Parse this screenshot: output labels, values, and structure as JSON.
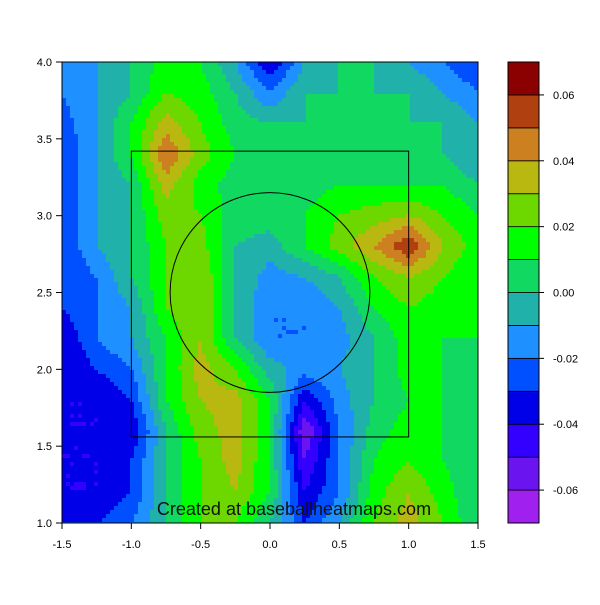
{
  "chart_data": {
    "type": "heatmap",
    "subtype": "filled-contour",
    "title": "",
    "xlabel": "",
    "ylabel": "",
    "xlim": [
      -1.5,
      1.5
    ],
    "ylim": [
      1.0,
      4.0
    ],
    "x_ticks": [
      -1.5,
      -1.0,
      -0.5,
      0.0,
      0.5,
      1.0,
      1.5
    ],
    "x_tick_labels": [
      "-1.5",
      "-1.0",
      "-0.5",
      "0.0",
      "0.5",
      "1.0",
      "1.5"
    ],
    "y_ticks": [
      1.0,
      1.5,
      2.0,
      2.5,
      3.0,
      3.5,
      4.0
    ],
    "y_tick_labels": [
      "1.0",
      "1.5",
      "2.0",
      "2.5",
      "3.0",
      "3.5",
      "4.0"
    ],
    "grid": false,
    "watermark": "Created at baseballheatmaps.com",
    "strike_zone": {
      "x": [
        -1.0,
        1.0
      ],
      "y": [
        1.56,
        3.42
      ]
    },
    "reference_circle": {
      "center": [
        0.0,
        2.5
      ],
      "radius_y": 0.65
    },
    "colorbar": {
      "levels": [
        -0.07,
        -0.06,
        -0.05,
        -0.04,
        -0.03,
        -0.02,
        -0.01,
        0.0,
        0.01,
        0.02,
        0.03,
        0.04,
        0.05,
        0.06,
        0.07
      ],
      "colors": [
        "#a020f0",
        "#6a14f0",
        "#3300ff",
        "#0000e8",
        "#0050ff",
        "#1e90ff",
        "#20b2aa",
        "#10d860",
        "#00ff00",
        "#6cd800",
        "#b8b810",
        "#cd8020",
        "#b04010",
        "#8b0000"
      ],
      "tick_values": [
        -0.06,
        -0.04,
        -0.02,
        0.0,
        0.02,
        0.04,
        0.06
      ],
      "tick_labels": [
        "-0.06",
        "-0.04",
        "-0.02",
        "0.00",
        "0.02",
        "0.04",
        "0.06"
      ]
    },
    "x": [
      -1.5,
      -1.25,
      -1.0,
      -0.75,
      -0.5,
      -0.25,
      0.0,
      0.25,
      0.5,
      0.75,
      1.0,
      1.25,
      1.5
    ],
    "y": [
      1.0,
      1.2,
      1.4,
      1.6,
      1.8,
      2.0,
      2.2,
      2.4,
      2.6,
      2.8,
      3.0,
      3.2,
      3.4,
      3.6,
      3.8,
      4.0
    ],
    "z": [
      [
        -0.03,
        -0.03,
        -0.02,
        0.0,
        0.02,
        0.02,
        0.0,
        -0.03,
        -0.01,
        0.02,
        0.035,
        0.02,
        0.0
      ],
      [
        -0.04,
        -0.04,
        -0.03,
        0.0,
        0.02,
        0.03,
        0.01,
        -0.04,
        -0.02,
        0.015,
        0.03,
        0.015,
        0.0
      ],
      [
        -0.04,
        -0.04,
        -0.03,
        0.0,
        0.02,
        0.035,
        0.01,
        -0.05,
        -0.02,
        0.01,
        0.02,
        0.01,
        0.0
      ],
      [
        -0.04,
        -0.04,
        -0.04,
        0.0,
        0.025,
        0.035,
        0.01,
        -0.06,
        -0.02,
        0.005,
        0.015,
        0.01,
        0.0
      ],
      [
        -0.04,
        -0.04,
        -0.03,
        0.01,
        0.03,
        0.035,
        0.01,
        -0.04,
        -0.015,
        0.0,
        0.01,
        0.01,
        0.0
      ],
      [
        -0.04,
        -0.03,
        -0.02,
        0.01,
        0.035,
        0.02,
        -0.005,
        -0.015,
        -0.01,
        0.0,
        0.015,
        0.01,
        0.0
      ],
      [
        -0.04,
        -0.02,
        -0.01,
        0.01,
        0.03,
        0.0,
        -0.02,
        -0.02,
        -0.015,
        0.0,
        0.015,
        0.01,
        0.01
      ],
      [
        -0.03,
        -0.02,
        -0.01,
        0.02,
        0.03,
        0.0,
        -0.02,
        -0.02,
        -0.01,
        0.01,
        0.02,
        0.015,
        0.01
      ],
      [
        -0.03,
        -0.02,
        0.0,
        0.02,
        0.03,
        0.0,
        -0.015,
        -0.01,
        0.0,
        0.02,
        0.03,
        0.02,
        0.01
      ],
      [
        -0.03,
        -0.01,
        0.0,
        0.02,
        0.025,
        0.0,
        -0.005,
        0.01,
        0.025,
        0.04,
        0.06,
        0.03,
        0.015
      ],
      [
        -0.03,
        -0.01,
        0.0,
        0.025,
        0.02,
        0.005,
        0.005,
        0.01,
        0.02,
        0.025,
        0.03,
        0.02,
        0.01
      ],
      [
        -0.03,
        -0.01,
        0.0,
        0.035,
        0.015,
        0.005,
        0.005,
        0.005,
        0.01,
        0.01,
        0.01,
        0.01,
        0.0
      ],
      [
        -0.03,
        -0.01,
        0.01,
        0.05,
        0.025,
        0.01,
        0.005,
        0.0,
        0.0,
        0.0,
        0.0,
        0.0,
        -0.01
      ],
      [
        -0.025,
        -0.01,
        0.01,
        0.035,
        0.02,
        0.005,
        0.0,
        0.0,
        0.0,
        0.0,
        0.0,
        0.0,
        -0.01
      ],
      [
        -0.02,
        -0.01,
        0.0,
        0.02,
        0.015,
        0.0,
        -0.02,
        0.0,
        0.0,
        0.0,
        0.0,
        -0.01,
        -0.02
      ],
      [
        -0.02,
        -0.01,
        0.0,
        0.015,
        0.01,
        -0.01,
        -0.04,
        -0.01,
        0.0,
        0.0,
        -0.01,
        -0.02,
        -0.03
      ]
    ]
  }
}
